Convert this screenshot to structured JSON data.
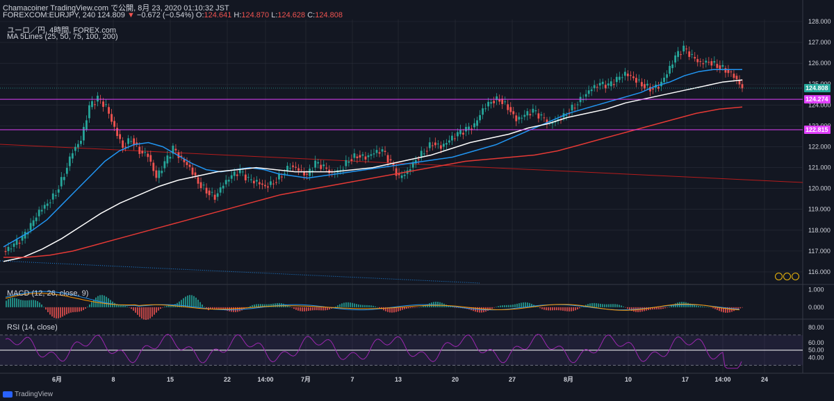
{
  "header": {
    "line1": "Chamacoiner TradingView.com で公開, 8月 23, 2020 01:10:32 JST",
    "symbol": "FOREXCOM:EURJPY, 240",
    "last": "124.809",
    "arrow": "▼",
    "change": "−0.672 (−0.54%)",
    "o_label": "O:",
    "o_val": "124.641",
    "h_label": "H:",
    "h_val": "124.870",
    "l_label": "L:",
    "l_val": "124.628",
    "c_label": "C:",
    "c_val": "124.808",
    "instrument": "ユーロ／円, 4時間, FOREX.com",
    "indicator": "MA 5Lines (25, 50, 75, 100, 200)"
  },
  "macd_label": "MACD (12, 26, close, 9)",
  "rsi_label": "RSI (14, close)",
  "footer": {
    "brand": "TradingView"
  },
  "colors": {
    "background": "#131722",
    "grid": "#2a2e39",
    "up": "#26a69a",
    "down": "#ef5350",
    "ma_blue": "#2196f3",
    "ma_white": "#ffffff",
    "ma_red": "#e53935",
    "level_line": "#e040fb",
    "price_line": "#26a69a",
    "rsi_line": "#9c27b0",
    "trend_red": "#b71c1c",
    "trend_blue": "#1e88e5"
  },
  "chart_data": [
    {
      "type": "line",
      "title": "ユーロ／円, 4時間, FOREX.com",
      "y_ticks": [
        "128.000",
        "127.000",
        "126.000",
        "125.000",
        "124.000",
        "123.000",
        "122.000",
        "121.000",
        "120.000",
        "119.000",
        "118.000",
        "117.000",
        "116.000"
      ],
      "ylim": [
        115.4,
        128.1
      ],
      "x_ticks": [
        "6月",
        "8",
        "15",
        "22",
        "14:00",
        "7月",
        "7",
        "13",
        "20",
        "27",
        "8月",
        "10",
        "17",
        "14:00",
        "24"
      ],
      "price_labels": [
        {
          "value": 124.808,
          "text": "124.808",
          "color": "#26a69a"
        },
        {
          "value": 124.274,
          "text": "124.274",
          "color": "#e040fb"
        },
        {
          "value": 122.815,
          "text": "122.815",
          "color": "#e040fb"
        }
      ],
      "horizontal_levels": [
        124.274,
        122.815
      ],
      "series": [
        {
          "name": "close",
          "values": [
            117.0,
            117.3,
            117.6,
            118.2,
            118.9,
            119.3,
            119.8,
            120.7,
            121.8,
            122.3,
            123.9,
            124.3,
            123.9,
            122.9,
            122.0,
            122.4,
            121.8,
            121.6,
            120.5,
            121.2,
            121.9,
            121.4,
            121.0,
            120.3,
            119.9,
            119.6,
            120.2,
            120.6,
            120.8,
            120.4,
            120.3,
            120.1,
            120.3,
            120.7,
            121.1,
            120.9,
            120.6,
            121.2,
            121.0,
            120.7,
            120.9,
            121.4,
            121.6,
            121.5,
            121.7,
            121.8,
            121.2,
            120.5,
            120.8,
            121.4,
            121.8,
            122.2,
            122.0,
            122.3,
            122.6,
            122.8,
            123.0,
            123.8,
            124.2,
            124.3,
            123.9,
            123.3,
            123.5,
            123.7,
            123.4,
            123.1,
            123.3,
            123.6,
            124.0,
            124.4,
            124.8,
            125.0,
            124.9,
            125.2,
            125.5,
            125.3,
            125.0,
            124.8,
            124.9,
            125.5,
            126.3,
            126.7,
            126.3,
            126.0,
            126.1,
            125.9,
            125.7,
            125.4,
            124.8
          ]
        },
        {
          "name": "MA-blue",
          "values": [
            117.2,
            117.6,
            118.0,
            118.5,
            119.2,
            119.9,
            120.6,
            121.3,
            121.8,
            122.1,
            122.2,
            122.0,
            121.6,
            121.2,
            120.9,
            120.8,
            120.9,
            121.0,
            120.9,
            120.7,
            120.6,
            120.5,
            120.6,
            120.7,
            120.8,
            120.9,
            121.0,
            121.1,
            121.2,
            121.3,
            121.4,
            121.5,
            121.7,
            121.9,
            122.1,
            122.4,
            122.7,
            123.0,
            123.3,
            123.6,
            123.8,
            124.0,
            124.2,
            124.4,
            124.6,
            124.9,
            125.1,
            125.4,
            125.6,
            125.7,
            125.7,
            125.7
          ]
        },
        {
          "name": "MA-white",
          "values": [
            116.5,
            116.7,
            117.1,
            117.6,
            118.2,
            118.8,
            119.3,
            119.7,
            120.1,
            120.4,
            120.6,
            120.8,
            120.9,
            121.0,
            120.9,
            120.8,
            120.8,
            120.8,
            120.9,
            121.0,
            121.2,
            121.4,
            121.6,
            121.9,
            122.2,
            122.4,
            122.6,
            122.9,
            123.1,
            123.4,
            123.6,
            123.8,
            124.1,
            124.3,
            124.5,
            124.7,
            124.9,
            125.1,
            125.2
          ]
        },
        {
          "name": "MA-red",
          "values": [
            116.7,
            116.7,
            116.8,
            117.0,
            117.3,
            117.6,
            117.9,
            118.2,
            118.5,
            118.8,
            119.1,
            119.4,
            119.7,
            119.9,
            120.1,
            120.3,
            120.5,
            120.7,
            120.9,
            121.1,
            121.3,
            121.4,
            121.5,
            121.6,
            121.8,
            122.1,
            122.4,
            122.7,
            123.0,
            123.3,
            123.6,
            123.8,
            123.9
          ]
        }
      ]
    },
    {
      "type": "bar",
      "title": "MACD (12, 26, close, 9)",
      "y_ticks": [
        "1.000",
        "0.000"
      ],
      "ylim": [
        -0.6,
        1.3
      ]
    },
    {
      "type": "line",
      "title": "RSI (14, close)",
      "y_ticks": [
        "80.00",
        "60.00",
        "50.00",
        "40.00"
      ],
      "ylim": [
        25,
        90
      ],
      "levels": [
        70,
        50,
        30
      ]
    }
  ]
}
